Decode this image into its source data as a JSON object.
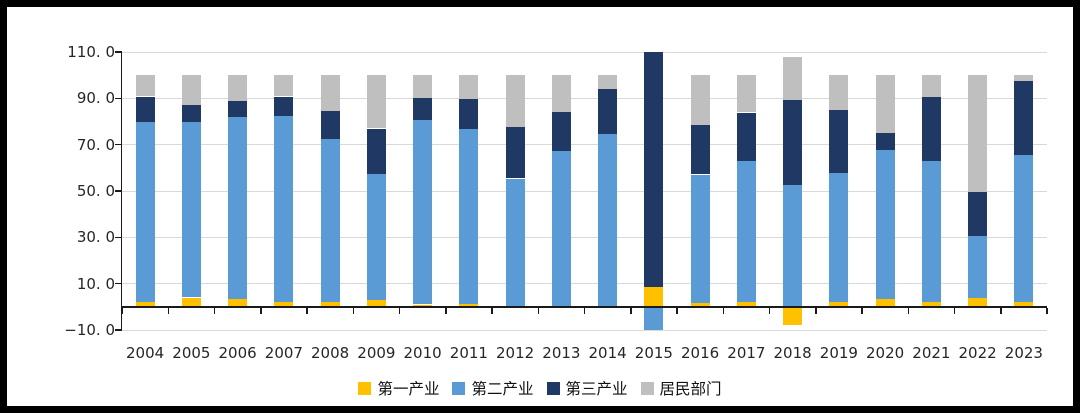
{
  "chart_data": {
    "type": "bar",
    "stacked": true,
    "stack_unit": "percent",
    "title": "",
    "xlabel": "",
    "ylabel": "",
    "categories": [
      "2004",
      "2005",
      "2006",
      "2007",
      "2008",
      "2009",
      "2010",
      "2011",
      "2012",
      "2013",
      "2014",
      "2015",
      "2016",
      "2017",
      "2018",
      "2019",
      "2020",
      "2021",
      "2022",
      "2023"
    ],
    "series": [
      {
        "name": "第一产业",
        "color": "#FFC000",
        "values": [
          1.9,
          4.0,
          3.2,
          2.2,
          2.2,
          2.9,
          1.0,
          1.3,
          0.2,
          0.2,
          0.5,
          8.6,
          1.7,
          2.0,
          -8.0,
          1.9,
          3.3,
          2.3,
          4.0,
          2.0
        ]
      },
      {
        "name": "第二产业",
        "color": "#5B9BD5",
        "values": [
          78.1,
          75.6,
          78.9,
          80.3,
          70.2,
          54.6,
          79.6,
          75.6,
          55.2,
          67.2,
          74.2,
          -10.5,
          55.4,
          60.8,
          52.4,
          55.7,
          64.3,
          60.8,
          26.5,
          63.5
        ]
      },
      {
        "name": "第三产业",
        "color": "#1F3864",
        "values": [
          10.8,
          7.6,
          6.8,
          8.3,
          12.2,
          19.5,
          9.5,
          12.7,
          22.2,
          16.9,
          19.4,
          101.9,
          21.5,
          21.1,
          36.7,
          27.5,
          7.6,
          27.4,
          19.0,
          31.8
        ]
      },
      {
        "name": "居民部门",
        "color": "#BFBFBF",
        "values": [
          9.2,
          12.8,
          11.1,
          9.2,
          15.4,
          23.0,
          9.9,
          10.4,
          22.4,
          15.7,
          5.9,
          0.0,
          21.4,
          16.1,
          18.9,
          14.9,
          24.8,
          9.5,
          50.5,
          2.7
        ]
      }
    ],
    "ylim": [
      -10,
      110
    ],
    "yticks": [
      {
        "value": 110,
        "label": "110. 0"
      },
      {
        "value": 90,
        "label": "90. 0"
      },
      {
        "value": 70,
        "label": "70. 0"
      },
      {
        "value": 50,
        "label": "50. 0"
      },
      {
        "value": 30,
        "label": "30. 0"
      },
      {
        "value": 10,
        "label": "10. 0"
      },
      {
        "value": -10,
        "label": "−10. 0"
      }
    ],
    "grid": true,
    "legend_position": "bottom"
  },
  "colors": {
    "gridline": "#D9D9D9",
    "axis": "#1A1A1A",
    "tick_text": "#262626",
    "legend_text": "#111111",
    "frame": "#000000",
    "background": "#FFFFFF"
  }
}
